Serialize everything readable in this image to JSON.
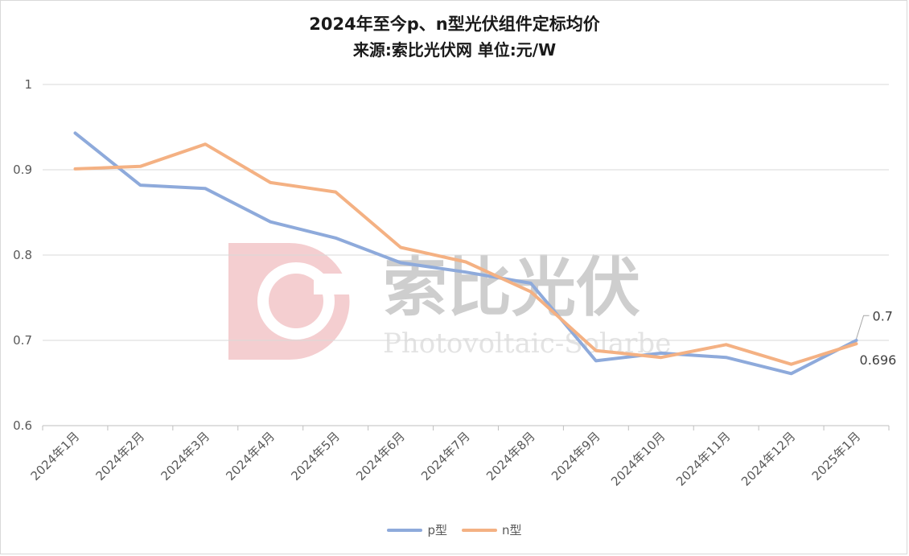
{
  "chart_data": {
    "type": "line",
    "title": "2024年至今p、n型光伏组件定标均价",
    "subtitle": "来源:索比光伏网 单位:元/W",
    "categories": [
      "2024年1月",
      "2024年2月",
      "2024年3月",
      "2024年4月",
      "2024年5月",
      "2024年6月",
      "2024年7月",
      "2024年8月",
      "2024年9月",
      "2024年10月",
      "2024年11月",
      "2024年12月",
      "2025年1月"
    ],
    "ylim": [
      0.6,
      1.0
    ],
    "yticks": [
      0.6,
      0.7,
      0.8,
      0.9,
      1
    ],
    "grid": true,
    "legend_position": "bottom",
    "series": [
      {
        "name": "p型",
        "color": "#8eaadb",
        "values": [
          0.943,
          0.882,
          0.878,
          0.839,
          0.82,
          0.791,
          0.78,
          0.767,
          0.676,
          0.685,
          0.68,
          0.661,
          0.7
        ],
        "end_label": "0.7"
      },
      {
        "name": "n型",
        "color": "#f4b183",
        "values": [
          0.901,
          0.904,
          0.93,
          0.885,
          0.874,
          0.809,
          0.792,
          0.757,
          0.688,
          0.68,
          0.695,
          0.672,
          0.696
        ],
        "end_label": "0.696"
      }
    ]
  },
  "watermark": {
    "brand": "索比光伏",
    "tagline": "Photovoltaic-Solarbe",
    "color": "#e8a3a6"
  }
}
